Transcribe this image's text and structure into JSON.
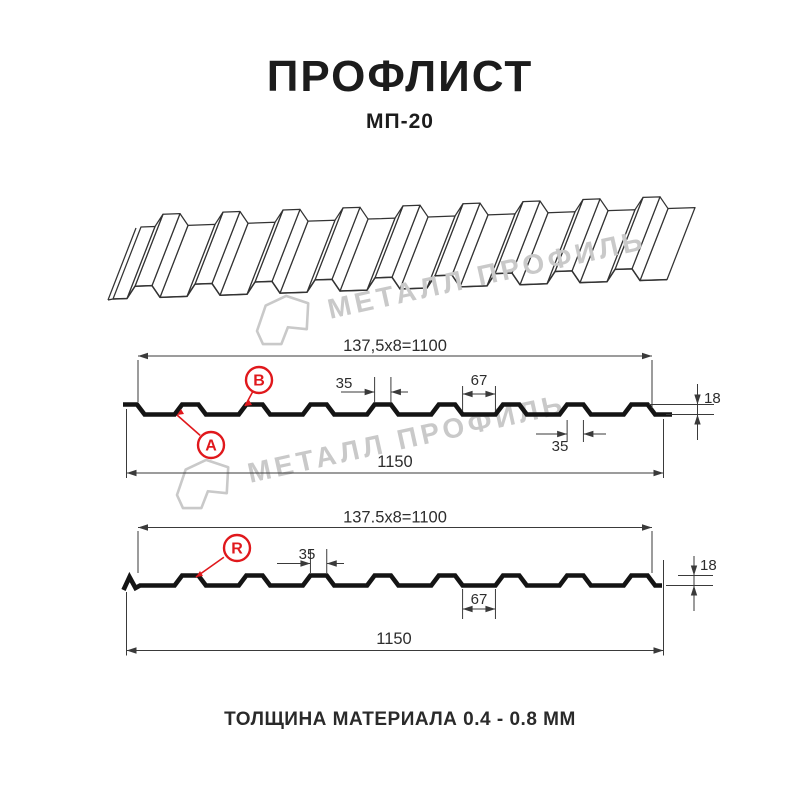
{
  "header": {
    "title": "ПРОФЛИСТ",
    "subtitle": "МП-20"
  },
  "watermark": {
    "text": "МЕТАЛЛ ПРОФИЛЬ"
  },
  "section1": {
    "dim_coverage": "137,5x8=1100",
    "dim_rib_top": "35",
    "dim_valley": "67",
    "dim_height": "18",
    "dim_rib_bottom": "35",
    "dim_overall": "1150",
    "callout_a": "A",
    "callout_b": "B"
  },
  "section2": {
    "dim_coverage": "137.5x8=1100",
    "dim_rib_top": "35",
    "dim_height": "18",
    "dim_valley": "67",
    "dim_overall": "1150",
    "callout_r": "R"
  },
  "footer": {
    "text": "ТОЛЩИНА МАТЕРИАЛА 0.4 - 0.8 ММ"
  },
  "colors": {
    "line": "#3a3a3a",
    "profile": "#141414",
    "accent_red": "#e0181c",
    "watermark": "#c9c9c9",
    "text": "#2d2d2d",
    "wire": "#333333"
  }
}
